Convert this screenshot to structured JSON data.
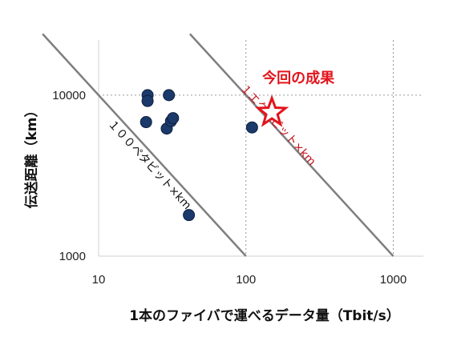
{
  "chart_data": {
    "type": "scatter",
    "xlabel": "1本のファイバで運べるデータ量（Tbit/s）",
    "ylabel": "伝送距離（km）",
    "xscale": "log",
    "yscale": "log",
    "xlim": [
      10,
      1600
    ],
    "ylim": [
      1000,
      22000
    ],
    "x_ticks": [
      10,
      100,
      1000
    ],
    "x_tick_labels": [
      "10",
      "100",
      "1000"
    ],
    "y_ticks": [
      1000,
      10000
    ],
    "y_tick_labels": [
      "1000",
      "10000"
    ],
    "grid": "dotted at major ticks",
    "series": [
      {
        "marker": "circle",
        "color": "#1b3a6b",
        "points": [
          {
            "x": 21.5,
            "y": 10000
          },
          {
            "x": 21.5,
            "y": 9200
          },
          {
            "x": 21,
            "y": 6800
          },
          {
            "x": 30,
            "y": 10000
          },
          {
            "x": 29,
            "y": 6200
          },
          {
            "x": 31,
            "y": 6900
          },
          {
            "x": 32,
            "y": 7200
          },
          {
            "x": 110,
            "y": 6300
          },
          {
            "x": 41,
            "y": 1800
          }
        ]
      },
      {
        "marker": "star",
        "color": "#e3141c",
        "points": [
          {
            "x": 150,
            "y": 7800
          }
        ]
      }
    ],
    "reference_lines": [
      {
        "label": "１００ペタビット×km",
        "color": "#7f7f7f",
        "product": 100000,
        "label_color": "#111111"
      },
      {
        "label": "１エクサビット×km",
        "color": "#7f7f7f",
        "product": 1000000,
        "label_color": "#c0131b"
      }
    ],
    "annotation": {
      "text": "今回の成果",
      "color": "#e3141c"
    }
  }
}
